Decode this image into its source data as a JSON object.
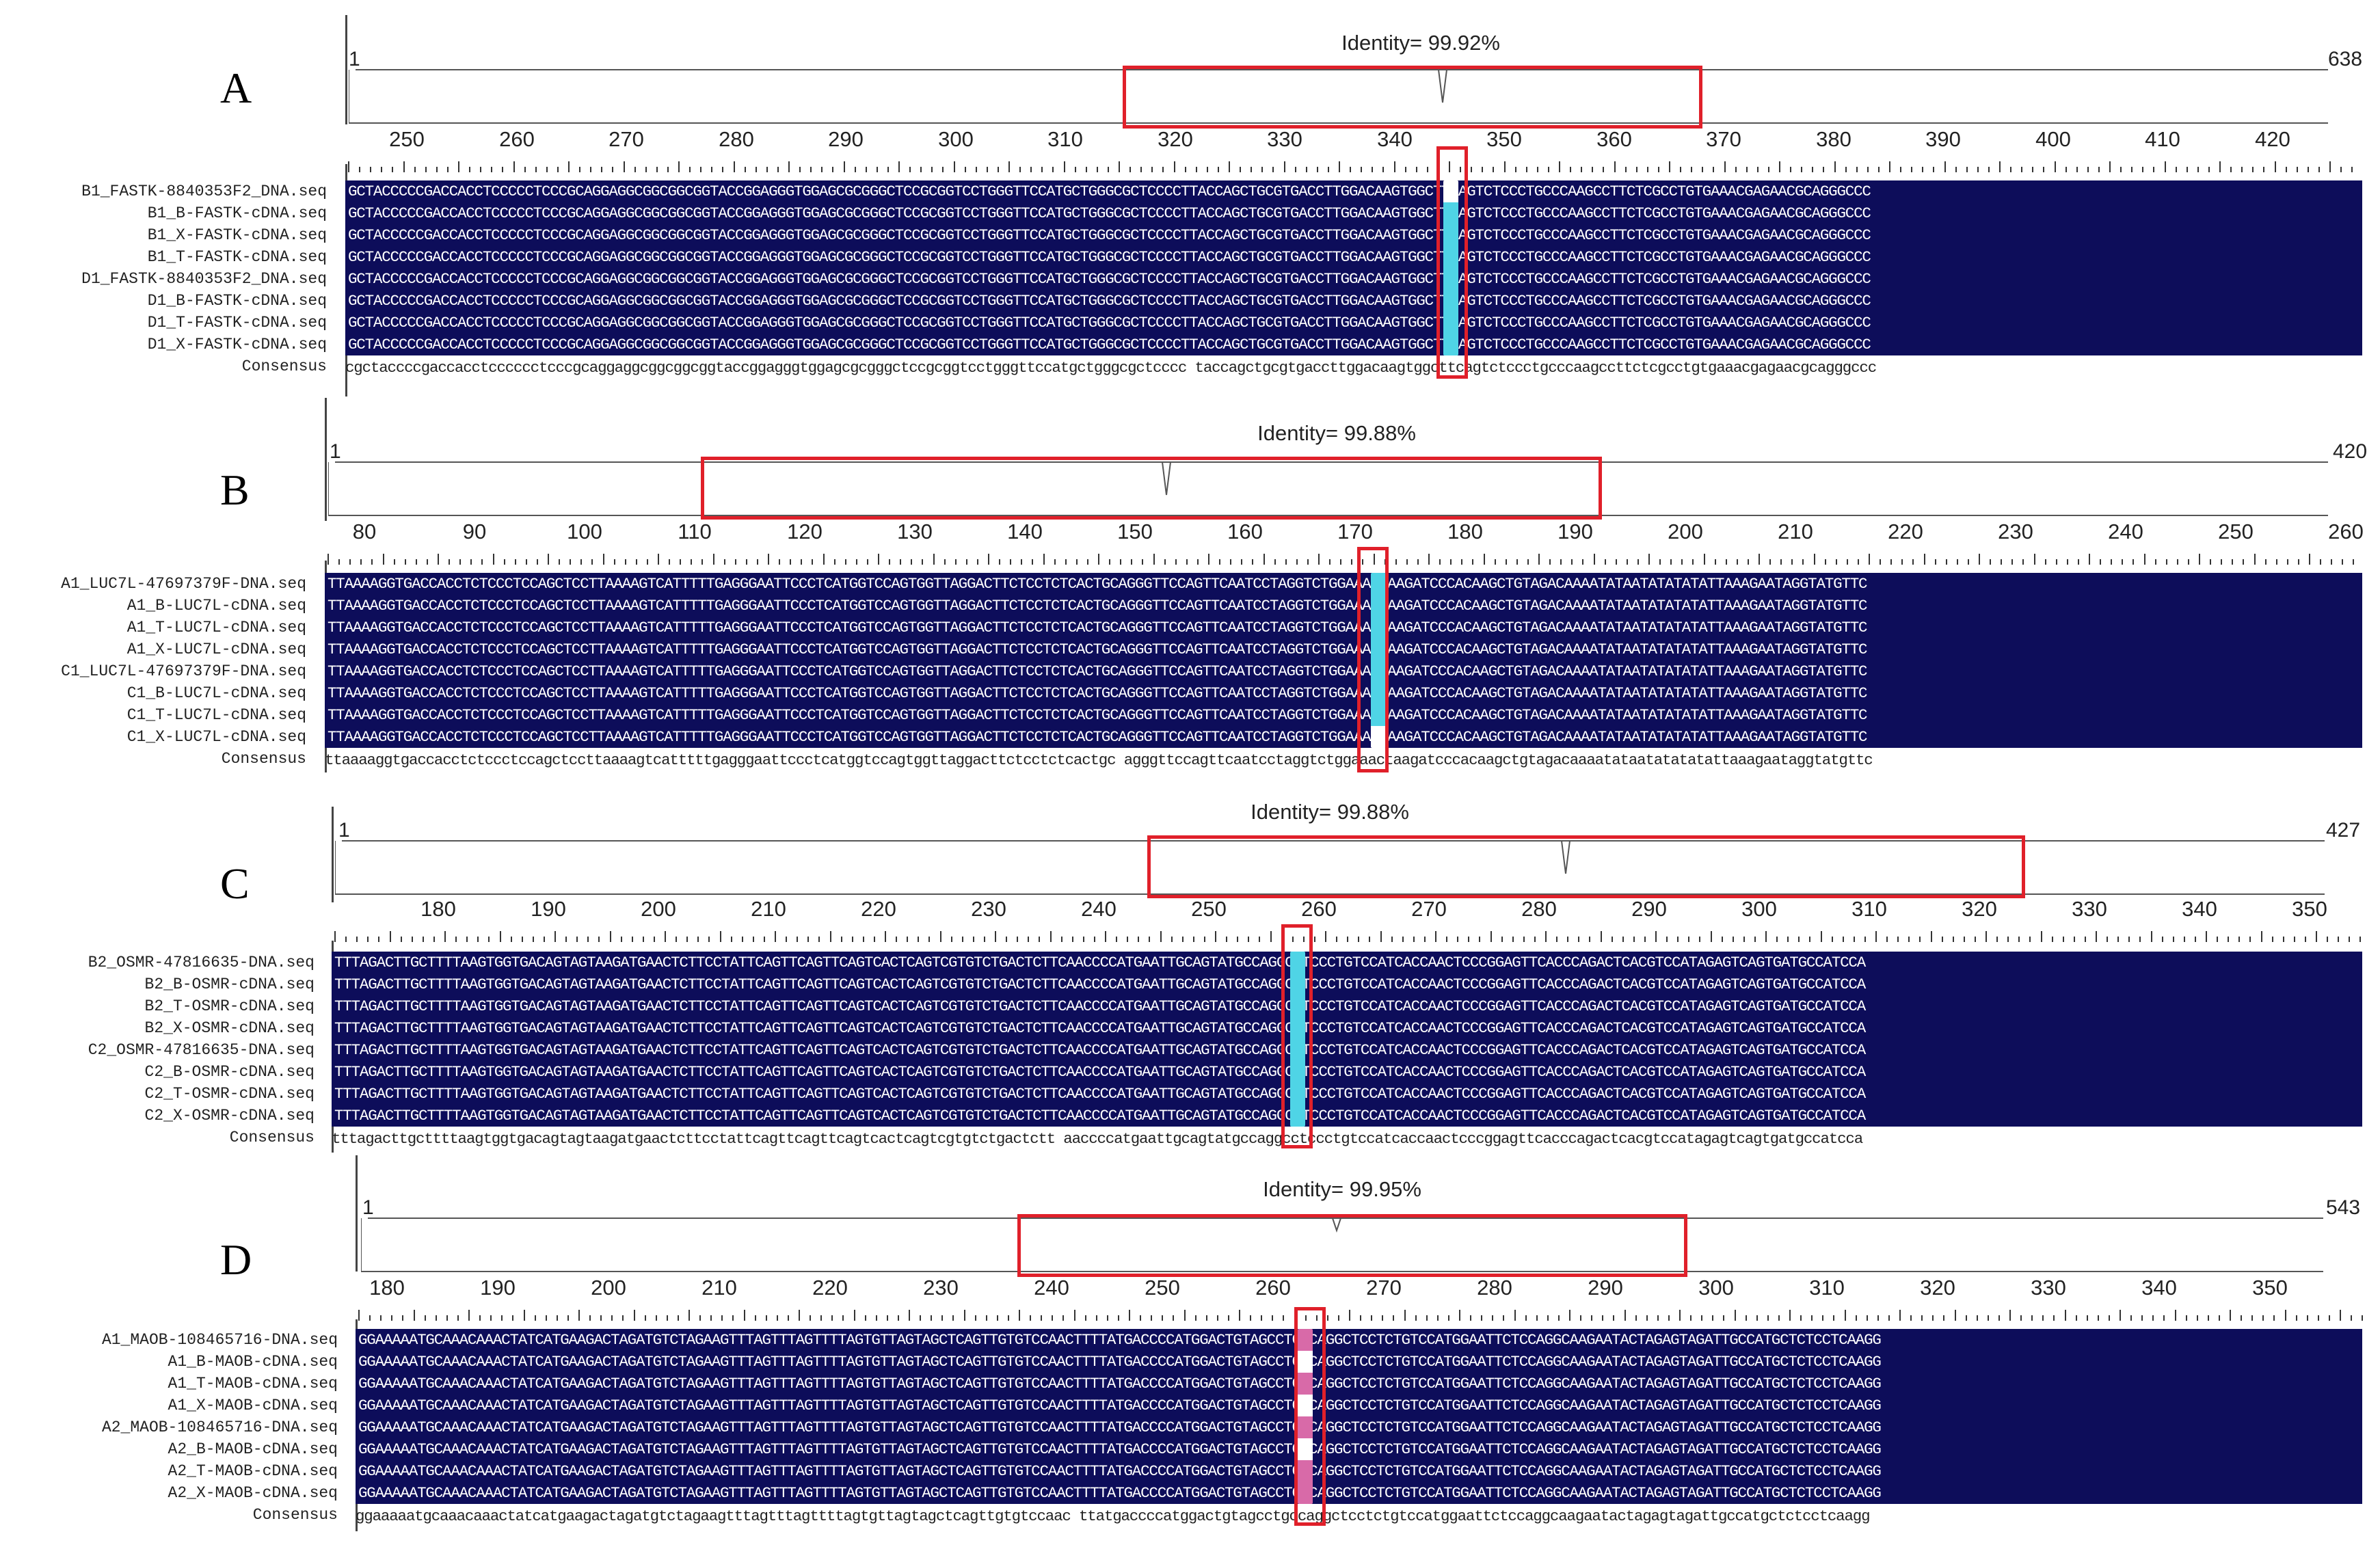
{
  "colors": {
    "alignment_bg": "#0d0d5a",
    "highlight_box": "#e0202a",
    "cyan_cell": "#4fd4e6",
    "pink_cell": "#d86aa8"
  },
  "panels": [
    {
      "letter": "A",
      "identity": "Identity= 99.92%",
      "start": "1",
      "end": "638",
      "ticks": [
        "250",
        "260",
        "270",
        "280",
        "290",
        "300",
        "310",
        "320",
        "330",
        "340",
        "350",
        "360",
        "370",
        "380",
        "390",
        "400",
        "410",
        "420"
      ],
      "names": [
        "B1_FASTK-8840353F2_DNA.seq",
        "B1_B-FASTK-cDNA.seq",
        "B1_X-FASTK-cDNA.seq",
        "B1_T-FASTK-cDNA.seq",
        "D1_FASTK-8840353F2_DNA.seq",
        "D1_B-FASTK-cDNA.seq",
        "D1_T-FASTK-cDNA.seq",
        "D1_X-FASTK-cDNA.seq"
      ],
      "sequence": "GCTACCCCCGACCACCTCCCCCTCCCGCAGGAGGCGGCGGCGGTACCGGAGGGTGGAGCGCGGGCTCCGCGGTCCTGGGTTCCATGCTGGGCGCTCCCCTTACCAGCTGCGTGACCTTGGACAAGTGGCTTCAGTCTCCCTGCCCAAGCCTTCTCGCCTGTGAAACGAGAACGCAGGGCCC",
      "consensus_label": "Consensus",
      "consensus": "cgctaccccgaccacctcccccctcccgcaggaggcggcggcggtaccggagggtggagcgcgggctccgcggtcctgggttccatgctgggcgctcccc taccagctgcgtgaccttggacaagtggcttcagtctccctgcccaagccttctcgcctgtgaaacgagaacgcagggccc"
    },
    {
      "letter": "B",
      "identity": "Identity= 99.88%",
      "start": "1",
      "end": "420",
      "ticks": [
        "80",
        "90",
        "100",
        "110",
        "120",
        "130",
        "140",
        "150",
        "160",
        "170",
        "180",
        "190",
        "200",
        "210",
        "220",
        "230",
        "240",
        "250",
        "260"
      ],
      "names": [
        "A1_LUC7L-47697379F-DNA.seq",
        "A1_B-LUC7L-cDNA.seq",
        "A1_T-LUC7L-cDNA.seq",
        "A1_X-LUC7L-cDNA.seq",
        "C1_LUC7L-47697379F-DNA.seq",
        "C1_B-LUC7L-cDNA.seq",
        "C1_T-LUC7L-cDNA.seq",
        "C1_X-LUC7L-cDNA.seq"
      ],
      "sequence": "TTAAAAGGTGACCACCTCTCCCTCCAGCTCCTTAAAAGTCATTTTTGAGGGAATTCCCTCATGGTCCAGTGGTTAGGACTTCTCCTCTCACTGCAGGGTTCCAGTTCAATCCTAGGTCTGGAAACTAAGATCCCACAAGCTGTAGACAAAATATAATATATATATTAAAGAATAGGTATGTTC",
      "consensus_label": "Consensus",
      "consensus": "ttaaaaggtgaccacctctccctccagctccttaaaagtcatttttgagggaattccctcatggtccagtggttaggacttctcctctcactgc agggttccagttcaatcctaggtctggaaactaagatcccacaagctgtagacaaaatataatatatatattaaagaataggtatgttc"
    },
    {
      "letter": "C",
      "identity": "Identity= 99.88%",
      "start": "1",
      "end": "427",
      "ticks": [
        "180",
        "190",
        "200",
        "210",
        "220",
        "230",
        "240",
        "250",
        "260",
        "270",
        "280",
        "290",
        "300",
        "310",
        "320",
        "330",
        "340",
        "350"
      ],
      "names": [
        "B2_OSMR-47816635-DNA.seq",
        "B2_B-OSMR-cDNA.seq",
        "B2_T-OSMR-cDNA.seq",
        "B2_X-OSMR-cDNA.seq",
        "C2_OSMR-47816635-DNA.seq",
        "C2_B-OSMR-cDNA.seq",
        "C2_T-OSMR-cDNA.seq",
        "C2_X-OSMR-cDNA.seq"
      ],
      "sequence": "TTTAGACTTGCTTTTAAGTGGTGACAGTAGTAAGATGAACTCTTCCTATTCAGTTCAGTTCAGTCACTCAGTCGTGTCTGACTCTTCAACCCCATGAATTGCAGTATGCCAGGCCTCCCTGTCCATCACCAACTCCCGGAGTTCACCCAGACTCACGTCCATAGAGTCAGTGATGCCATCCA",
      "consensus_label": "Consensus",
      "consensus": "tttagacttgcttttaagtggtgacagtagtaagatgaactcttcctattcagttcagttcagtcactcagtcgtgtctgactctt aaccccatgaattgcagtatgccaggcctccctgtccatcaccaactcccggagttcacccagactcacgtccatagagtcagtgatgccatcca"
    },
    {
      "letter": "D",
      "identity": "Identity= 99.95%",
      "start": "1",
      "end": "543",
      "ticks": [
        "180",
        "190",
        "200",
        "210",
        "220",
        "230",
        "240",
        "250",
        "260",
        "270",
        "280",
        "290",
        "300",
        "310",
        "320",
        "330",
        "340",
        "350"
      ],
      "names": [
        "A1_MAOB-108465716-DNA.seq",
        "A1_B-MAOB-cDNA.seq",
        "A1_T-MAOB-cDNA.seq",
        "A1_X-MAOB-cDNA.seq",
        "A2_MAOB-108465716-DNA.seq",
        "A2_B-MAOB-cDNA.seq",
        "A2_T-MAOB-cDNA.seq",
        "A2_X-MAOB-cDNA.seq"
      ],
      "sequence": "GGAAAAATGCAAACAAACTATCATGAAGACTAGATGTCTAGAAGTTTAGTTTAGTTTTAGTGTTAGTAGCTCAGTTGTGTCCAACTTTTATGACCCCATGGACTGTAGCCTGCCAGGCTCCTCTGTCCATGGAATTCTCCAGGCAAGAATACTAGAGTAGATTGCCATGCTCTCCTCAAGG",
      "consensus_label": "Consensus",
      "consensus": "ggaaaaatgcaaacaaactatcatgaagactagatgtctagaagtttagtttagttttagtgttagtagctcagttgtgtccaac ttatgaccccatggactgtagcctgccaggctcctctgtccatggaattctccaggcaagaatactagagtagattgccatgctctcctcaagg"
    }
  ]
}
